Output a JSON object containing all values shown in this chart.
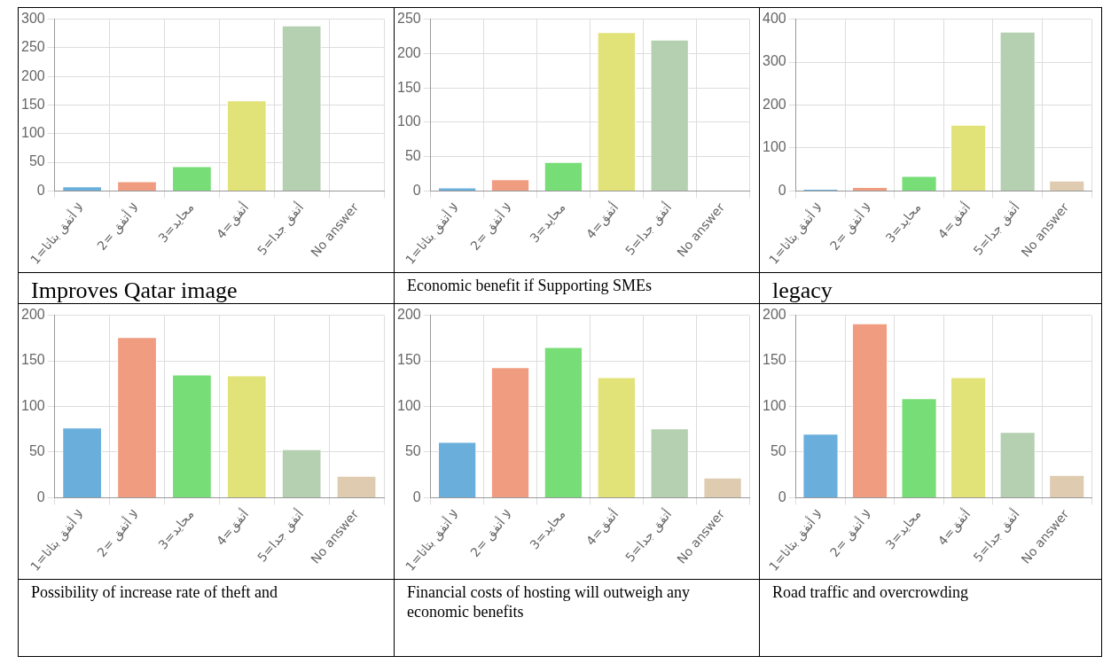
{
  "chart_data": [
    {
      "type": "bar",
      "title": "Improves Qatar image",
      "categories": [
        "1=لا أتفق بتاتا",
        "2= لا أتفق",
        "3=محايد",
        "4=أتفق",
        "5=أتفق جدا",
        "No answer"
      ],
      "values": [
        8,
        17,
        43,
        158,
        289,
        0
      ],
      "colors": [
        "#6aafdc",
        "#f09c80",
        "#77dd77",
        "#e1e277",
        "#b5d0b0",
        "#dfcbb0"
      ],
      "ylim": [
        0,
        300
      ],
      "yticks": [
        0,
        50,
        100,
        150,
        200,
        250,
        300
      ],
      "grid": true,
      "legend": false
    },
    {
      "type": "bar",
      "title": "Economic benefit if Supporting SMEs",
      "categories": [
        "1=لا أتفق بتاتا",
        "2= لا أتفق",
        "3=محايد",
        "4=أتفق",
        "5=أتفق جدا",
        "No answer"
      ],
      "values": [
        5,
        17,
        42,
        231,
        220,
        0
      ],
      "colors": [
        "#6aafdc",
        "#f09c80",
        "#77dd77",
        "#e1e277",
        "#b5d0b0",
        "#dfcbb0"
      ],
      "ylim": [
        0,
        250
      ],
      "yticks": [
        0,
        50,
        100,
        150,
        200,
        250
      ],
      "grid": true,
      "legend": false
    },
    {
      "type": "bar",
      "title": "legacy",
      "categories": [
        "1=لا أتفق بتاتا",
        "2= لا أتفق",
        "3=محايد",
        "4=أتفق",
        "5=أتفق جدا",
        "No answer"
      ],
      "values": [
        5,
        9,
        35,
        154,
        371,
        24
      ],
      "colors": [
        "#6aafdc",
        "#f09c80",
        "#77dd77",
        "#e1e277",
        "#b5d0b0",
        "#dfcbb0"
      ],
      "ylim": [
        0,
        400
      ],
      "yticks": [
        0,
        100,
        200,
        300,
        400
      ],
      "grid": true,
      "legend": false
    },
    {
      "type": "bar",
      "title": "Possibility of increase rate of theft and",
      "categories": [
        "1=لا أتفق بتاتا",
        "2= لا أتفق",
        "3=محايد",
        "4=أتفق",
        "5=أتفق جدا",
        "No answer"
      ],
      "values": [
        77,
        176,
        135,
        134,
        53,
        24
      ],
      "colors": [
        "#6aafdc",
        "#f09c80",
        "#77dd77",
        "#e1e277",
        "#b5d0b0",
        "#dfcbb0"
      ],
      "ylim": [
        0,
        200
      ],
      "yticks": [
        0,
        50,
        100,
        150,
        200
      ],
      "grid": true,
      "legend": false
    },
    {
      "type": "bar",
      "title": "Financial costs of hosting will outweigh any economic benefits",
      "categories": [
        "1=لا أتفق بتاتا",
        "2= لا أتفق",
        "3=محايد",
        "4=أتفق",
        "5=أتفق جدا",
        "No answer"
      ],
      "values": [
        61,
        143,
        165,
        132,
        76,
        22
      ],
      "colors": [
        "#6aafdc",
        "#f09c80",
        "#77dd77",
        "#e1e277",
        "#b5d0b0",
        "#dfcbb0"
      ],
      "ylim": [
        0,
        200
      ],
      "yticks": [
        0,
        50,
        100,
        150,
        200
      ],
      "grid": true,
      "legend": false
    },
    {
      "type": "bar",
      "title": "Road traffic and overcrowding",
      "categories": [
        "1=لا أتفق بتاتا",
        "2= لا أتفق",
        "3=محايد",
        "4=أتفق",
        "5=أتفق جدا",
        "No answer"
      ],
      "values": [
        70,
        191,
        109,
        132,
        72,
        25
      ],
      "colors": [
        "#6aafdc",
        "#f09c80",
        "#77dd77",
        "#e1e277",
        "#b5d0b0",
        "#dfcbb0"
      ],
      "ylim": [
        0,
        200
      ],
      "yticks": [
        0,
        50,
        100,
        150,
        200
      ],
      "grid": true,
      "legend": false
    }
  ]
}
